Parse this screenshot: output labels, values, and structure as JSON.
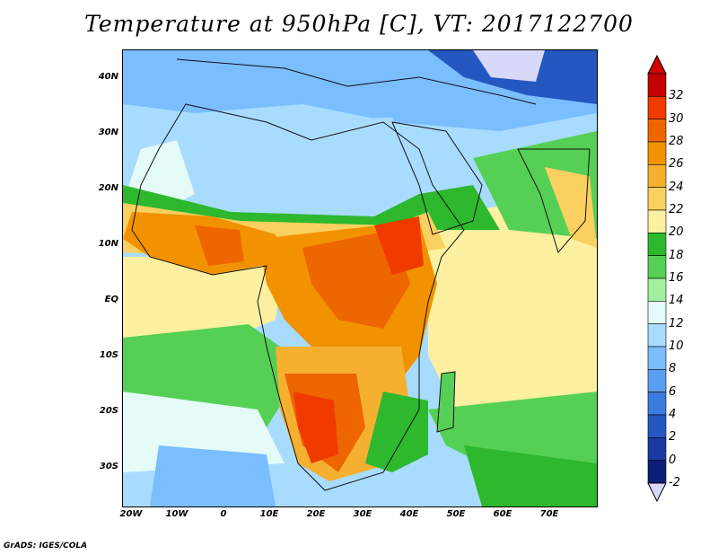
{
  "title": "Temperature at 950hPa [C], VT: 2017122700",
  "credit": "GrADS: IGES/COLA",
  "lat_labels": [
    "40N",
    "30N",
    "20N",
    "10N",
    "EQ",
    "10S",
    "20S",
    "30S"
  ],
  "lon_labels": [
    "20W",
    "10W",
    "0",
    "10E",
    "20E",
    "30E",
    "40E",
    "50E",
    "60E",
    "70E"
  ],
  "colorbar": {
    "labels": [
      "32",
      "30",
      "28",
      "26",
      "24",
      "22",
      "20",
      "18",
      "16",
      "14",
      "12",
      "10",
      "8",
      "6",
      "4",
      "2",
      "0",
      "-2"
    ],
    "colors": [
      "#c40000",
      "#f03a00",
      "#ee6600",
      "#f29200",
      "#f5b030",
      "#fad060",
      "#fdf0a0",
      "#2db82d",
      "#55d055",
      "#a0f0a0",
      "#e4fbf8",
      "#a8dcff",
      "#7abeff",
      "#5a9fef",
      "#3b7bdd",
      "#2457c0",
      "#1a3aa0",
      "#0a1e78"
    ],
    "min_arrow_color": "#d8d8f8",
    "max_arrow_color": "#d20000"
  },
  "map": {
    "ocean_background": "#a8dcff",
    "region_colors": {
      "cold": "#7abeff",
      "cool": "#a8dcff",
      "mild": "#e4fbf8",
      "green": "#2db82d",
      "lightgreen": "#55d055",
      "warm": "#fdf0a0",
      "warmer": "#fad060",
      "hot": "#f5b030",
      "hotter": "#f29200",
      "hottest": "#ee6600",
      "extreme": "#f03a00",
      "verycold": "#2457c0",
      "freezing": "#d8d8f8"
    }
  }
}
